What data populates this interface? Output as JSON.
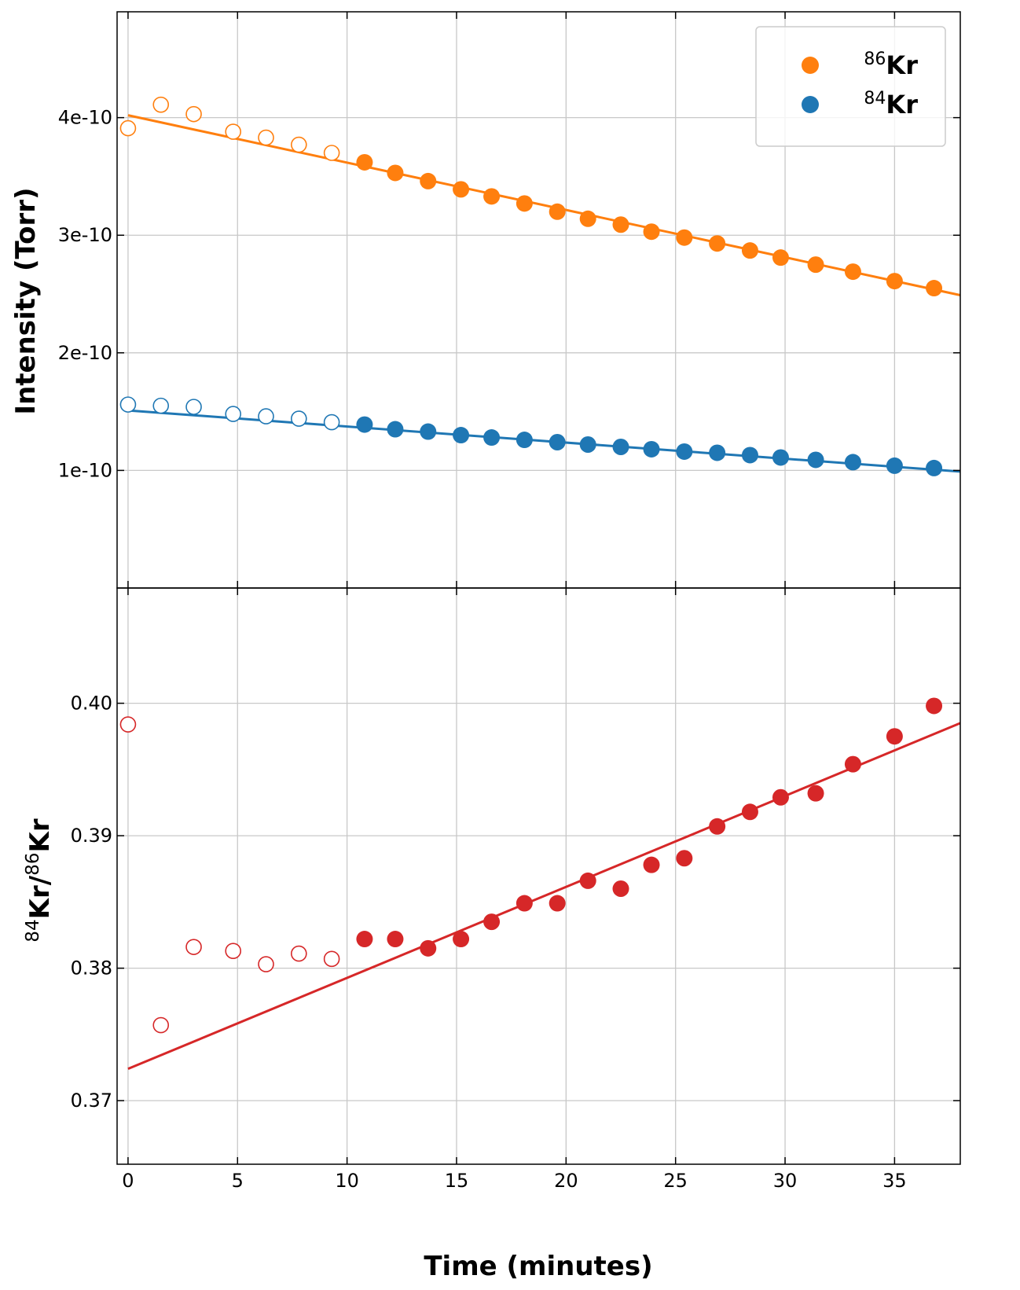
{
  "chart_data": [
    {
      "type": "scatter",
      "panel": "top",
      "ylabel": "Intensity (Torr)",
      "xlim": [
        -0.5,
        38
      ],
      "ylim": [
        0,
        4.9e-10
      ],
      "yticks": [
        1e-10,
        2e-10,
        3e-10,
        4e-10
      ],
      "ytick_labels": [
        "1e-10",
        "2e-10",
        "3e-10",
        "4e-10"
      ],
      "grid": true,
      "legend": {
        "placement": "top-right",
        "entries": [
          {
            "sup": "86",
            "text": "Kr",
            "color": "#ff7f0e"
          },
          {
            "sup": "84",
            "text": "Kr",
            "color": "#1f77b4"
          }
        ]
      },
      "series": [
        {
          "name": "86Kr",
          "color": "#ff7f0e",
          "x": [
            0,
            1.5,
            3,
            4.8,
            6.3,
            7.8,
            9.3,
            10.8,
            12.2,
            13.7,
            15.2,
            16.6,
            18.1,
            19.6,
            21,
            22.5,
            23.9,
            25.4,
            26.9,
            28.4,
            29.8,
            31.4,
            33.1,
            35,
            36.8
          ],
          "y": [
            3.91e-10,
            4.11e-10,
            4.03e-10,
            3.88e-10,
            3.83e-10,
            3.77e-10,
            3.7e-10,
            3.62e-10,
            3.53e-10,
            3.46e-10,
            3.39e-10,
            3.33e-10,
            3.27e-10,
            3.2e-10,
            3.14e-10,
            3.09e-10,
            3.03e-10,
            2.98e-10,
            2.93e-10,
            2.87e-10,
            2.81e-10,
            2.75e-10,
            2.69e-10,
            2.61e-10,
            2.55e-10
          ],
          "open_count": 7,
          "fit": {
            "x": [
              0,
              38
            ],
            "y": [
              4.02e-10,
              2.49e-10
            ]
          }
        },
        {
          "name": "84Kr",
          "color": "#1f77b4",
          "x": [
            0,
            1.5,
            3,
            4.8,
            6.3,
            7.8,
            9.3,
            10.8,
            12.2,
            13.7,
            15.2,
            16.6,
            18.1,
            19.6,
            21,
            22.5,
            23.9,
            25.4,
            26.9,
            28.4,
            29.8,
            31.4,
            33.1,
            35,
            36.8
          ],
          "y": [
            1.56e-10,
            1.55e-10,
            1.54e-10,
            1.48e-10,
            1.46e-10,
            1.44e-10,
            1.41e-10,
            1.39e-10,
            1.35e-10,
            1.33e-10,
            1.3e-10,
            1.28e-10,
            1.26e-10,
            1.24e-10,
            1.22e-10,
            1.2e-10,
            1.18e-10,
            1.16e-10,
            1.15e-10,
            1.13e-10,
            1.11e-10,
            1.09e-10,
            1.07e-10,
            1.04e-10,
            1.02e-10
          ],
          "open_count": 7,
          "fit": {
            "x": [
              0,
              38
            ],
            "y": [
              1.51e-10,
              9.9e-11
            ]
          }
        }
      ]
    },
    {
      "type": "scatter",
      "panel": "bottom",
      "ylabel_parts": {
        "sup1": "84",
        "mid": "Kr/",
        "sup2": "86",
        "end": "Kr"
      },
      "xlabel": "Time (minutes)",
      "xlim": [
        -0.5,
        38
      ],
      "ylim": [
        0.3652,
        0.4087
      ],
      "xticks": [
        0,
        5,
        10,
        15,
        20,
        25,
        30,
        35
      ],
      "xtick_labels": [
        "0",
        "5",
        "10",
        "15",
        "20",
        "25",
        "30",
        "35"
      ],
      "yticks": [
        0.37,
        0.38,
        0.39,
        0.4
      ],
      "ytick_labels": [
        "0.37",
        "0.38",
        "0.39",
        "0.40"
      ],
      "grid": true,
      "series": [
        {
          "name": "84Kr/86Kr",
          "color": "#d62728",
          "x": [
            0,
            1.5,
            3,
            4.8,
            6.3,
            7.8,
            9.3,
            10.8,
            12.2,
            13.7,
            15.2,
            16.6,
            18.1,
            19.6,
            21,
            22.5,
            23.9,
            25.4,
            26.9,
            28.4,
            29.8,
            31.4,
            33.1,
            35,
            36.8
          ],
          "y": [
            0.3984,
            0.3757,
            0.3816,
            0.3813,
            0.3803,
            0.3811,
            0.3807,
            0.3822,
            0.3822,
            0.3815,
            0.3822,
            0.3835,
            0.3849,
            0.3849,
            0.3866,
            0.386,
            0.3878,
            0.3883,
            0.3907,
            0.3918,
            0.3929,
            0.3932,
            0.3954,
            0.3975,
            0.3998
          ],
          "open_count": 7,
          "fit": {
            "x": [
              0,
              38
            ],
            "y": [
              0.3724,
              0.3985
            ]
          }
        }
      ]
    }
  ]
}
